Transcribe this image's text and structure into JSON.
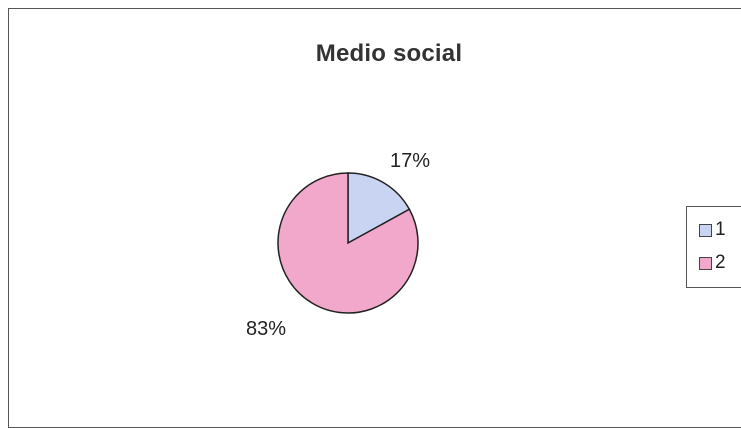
{
  "chart_data": {
    "type": "pie",
    "title": "Medio social",
    "slices": [
      {
        "label": "1",
        "value": 17,
        "display": "17%",
        "color": "#c8d4f2"
      },
      {
        "label": "2",
        "value": 83,
        "display": "83%",
        "color": "#f2a8ca"
      }
    ],
    "legend_position": "right"
  }
}
